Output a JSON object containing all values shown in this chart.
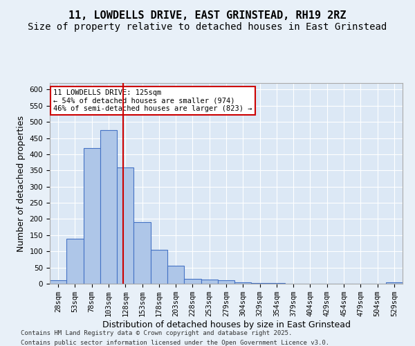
{
  "title_line1": "11, LOWDELLS DRIVE, EAST GRINSTEAD, RH19 2RZ",
  "title_line2": "Size of property relative to detached houses in East Grinstead",
  "xlabel": "Distribution of detached houses by size in East Grinstead",
  "ylabel": "Number of detached properties",
  "bins": [
    "28sqm",
    "53sqm",
    "78sqm",
    "103sqm",
    "128sqm",
    "153sqm",
    "178sqm",
    "203sqm",
    "228sqm",
    "253sqm",
    "279sqm",
    "304sqm",
    "329sqm",
    "354sqm",
    "379sqm",
    "404sqm",
    "429sqm",
    "454sqm",
    "479sqm",
    "504sqm",
    "529sqm"
  ],
  "values": [
    10,
    140,
    420,
    475,
    360,
    190,
    105,
    55,
    15,
    12,
    10,
    5,
    3,
    2,
    1,
    1,
    1,
    1,
    0,
    1,
    5
  ],
  "bar_color": "#aec6e8",
  "bar_edge_color": "#4472c4",
  "bar_width": 1.0,
  "red_line_x": 3.88,
  "red_line_color": "#cc0000",
  "annotation_text_line1": "11 LOWDELLS DRIVE: 125sqm",
  "annotation_text_line2": "← 54% of detached houses are smaller (974)",
  "annotation_text_line3": "46% of semi-detached houses are larger (823) →",
  "annotation_box_color": "#ffffff",
  "annotation_box_edge_color": "#cc0000",
  "ylim_max": 620,
  "ylim_min": 0,
  "yticks": [
    0,
    50,
    100,
    150,
    200,
    250,
    300,
    350,
    400,
    450,
    500,
    550,
    600
  ],
  "background_color": "#e8f0f8",
  "plot_background_color": "#dce8f5",
  "footer_line1": "Contains HM Land Registry data © Crown copyright and database right 2025.",
  "footer_line2": "Contains public sector information licensed under the Open Government Licence v3.0.",
  "grid_color": "#ffffff",
  "title_fontsize": 11,
  "subtitle_fontsize": 10,
  "tick_fontsize": 7.5,
  "label_fontsize": 9,
  "footer_fontsize": 6.5
}
